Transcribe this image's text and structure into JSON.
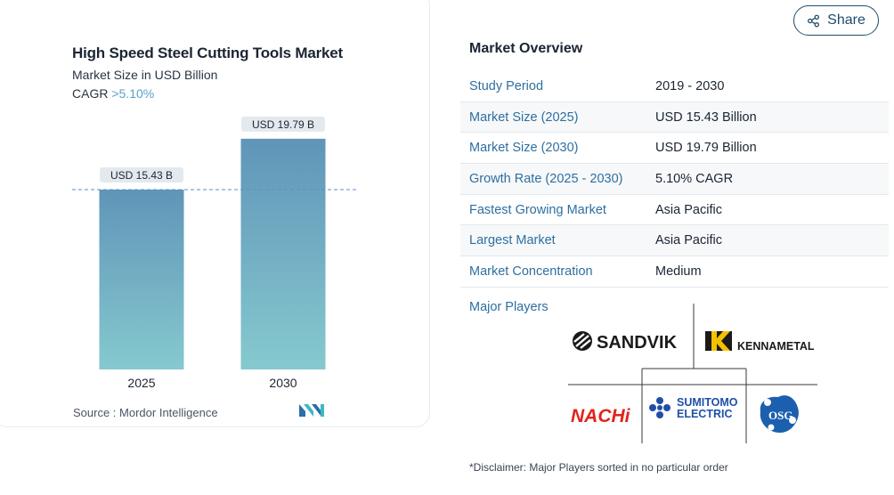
{
  "chart_data": {
    "type": "bar",
    "title": "High Speed Steel Cutting Tools Market",
    "subtitle": "Market Size in USD Billion",
    "cagr_label": "CAGR",
    "cagr_value": ">5.10%",
    "categories": [
      "2025",
      "2030"
    ],
    "values": [
      15.43,
      19.79
    ],
    "data_labels": [
      "USD 15.43 B",
      "USD 19.79 B"
    ],
    "ylim": [
      0,
      21
    ],
    "colors": {
      "bar_top": "#5f95b8",
      "bar_bottom": "#86c9cf",
      "reference_line": "#5b8fc7",
      "label_bg": "#e3e9ed"
    }
  },
  "source": {
    "label": "Source :",
    "value": "Mordor Intelligence"
  },
  "share": {
    "label": "Share",
    "icon": "share-icon"
  },
  "overview": {
    "title": "Market Overview",
    "rows": [
      {
        "key": "Study Period",
        "value": "2019 - 2030"
      },
      {
        "key": "Market Size (2025)",
        "value": "USD 15.43 Billion"
      },
      {
        "key": "Market Size (2030)",
        "value": "USD 19.79 Billion"
      },
      {
        "key": "Growth Rate (2025 - 2030)",
        "value": "5.10% CAGR"
      },
      {
        "key": "Fastest Growing Market",
        "value": "Asia Pacific"
      },
      {
        "key": "Largest Market",
        "value": "Asia Pacific"
      },
      {
        "key": "Market Concentration",
        "value": "Medium"
      }
    ]
  },
  "major_players": {
    "title": "Major Players",
    "logos": [
      {
        "name": "SANDVIK",
        "color": "#1a1a1a"
      },
      {
        "name": "KENNAMETAL",
        "color": "#1a1a1a"
      },
      {
        "name": "NACHi",
        "color": "#e2231a"
      },
      {
        "name": "SUMITOMO ELECTRIC",
        "line1": "SUMITOMO",
        "line2": "ELECTRIC",
        "color": "#1f4fa8"
      },
      {
        "name": "OSG",
        "color": "#1b5fae"
      }
    ]
  },
  "disclaimer": "*Disclaimer: Major Players sorted in no particular order"
}
